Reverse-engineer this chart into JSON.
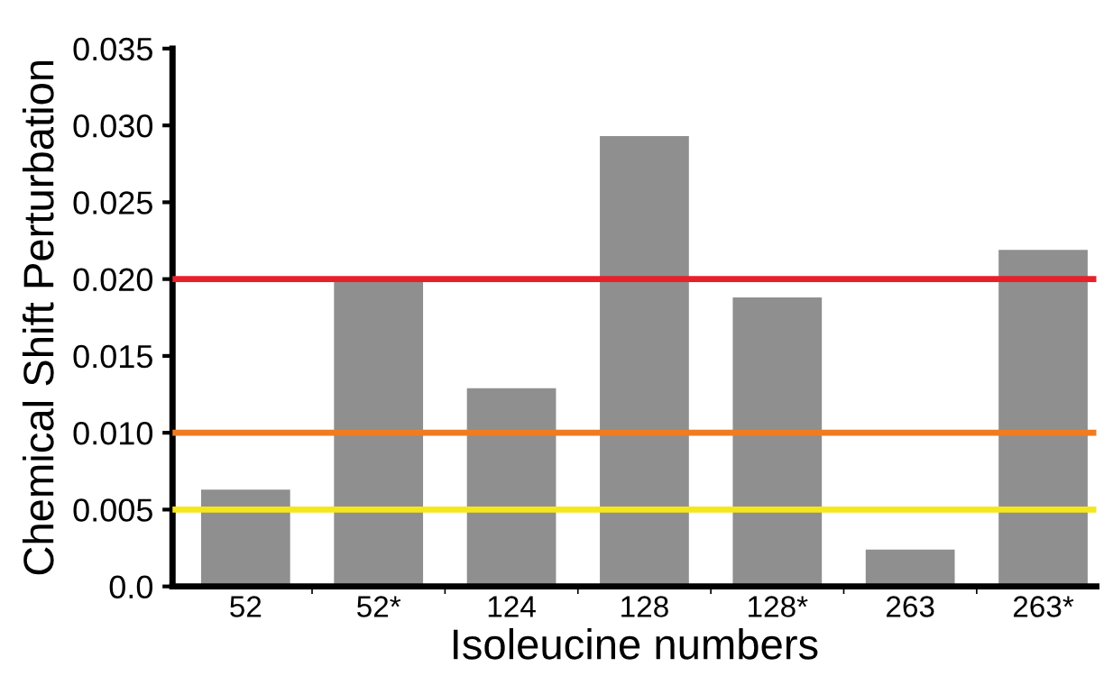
{
  "chart_data": {
    "type": "bar",
    "xlabel": "Isoleucine numbers",
    "ylabel": "Chemical Shift Perturbation",
    "categories": [
      "52",
      "52*",
      "124",
      "128",
      "128*",
      "263",
      "263*"
    ],
    "values": [
      0.0063,
      0.02,
      0.0129,
      0.0293,
      0.0188,
      0.0024,
      0.0219
    ],
    "color": "#8f8f8f",
    "ylim": [
      0,
      0.035
    ],
    "yticks": [
      {
        "value": 0,
        "label": "0.0"
      },
      {
        "value": 0.005,
        "label": "0.005"
      },
      {
        "value": 0.01,
        "label": "0.010"
      },
      {
        "value": 0.015,
        "label": "0.015"
      },
      {
        "value": 0.02,
        "label": "0.020"
      },
      {
        "value": 0.025,
        "label": "0.025"
      },
      {
        "value": 0.03,
        "label": "0.030"
      },
      {
        "value": 0.035,
        "label": "0.035"
      }
    ],
    "ref_lines": [
      {
        "axis": "y",
        "value": 0.02,
        "color": "#e8202a"
      },
      {
        "axis": "y",
        "value": 0.01,
        "color": "#f07c22"
      },
      {
        "axis": "y",
        "value": 0.005,
        "color": "#f4e81c"
      }
    ],
    "grid": false,
    "legend": false
  }
}
